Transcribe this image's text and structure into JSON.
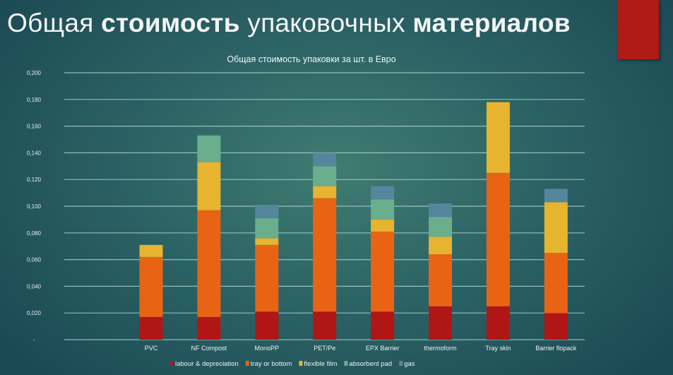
{
  "slide": {
    "title_parts": [
      {
        "text": "Общая ",
        "bold": false
      },
      {
        "text": "стоимость",
        "bold": true
      },
      {
        "text": " упаковочных ",
        "bold": false
      },
      {
        "text": "материалов",
        "bold": true
      }
    ],
    "accent_color": "#b01a17"
  },
  "chart_data": {
    "type": "bar",
    "stacked": true,
    "title": "Общая стоимость упаковки за шт. в Евро",
    "xlabel": "",
    "ylabel": "",
    "ylim": [
      0,
      0.2
    ],
    "yticks": [
      0,
      0.02,
      0.04,
      0.06,
      0.08,
      0.1,
      0.12,
      0.14,
      0.16,
      0.18,
      0.2
    ],
    "ytick_labels": [
      "-",
      "0,020",
      "0,040",
      "0,060",
      "0,080",
      "0,100",
      "0,120",
      "0,140",
      "0,160",
      "0,180",
      "0,200"
    ],
    "grid": true,
    "legend_position": "bottom",
    "categories": [
      "PVC",
      "NF Compost",
      "MonoPP",
      "PET/Pe",
      "EPX Barrier",
      "thermoform",
      "Tray skin",
      "Barrier flopack"
    ],
    "series": [
      {
        "name": "labour & depreciation",
        "color": "#b01615",
        "values": [
          0.017,
          0.017,
          0.021,
          0.021,
          0.021,
          0.025,
          0.025,
          0.02
        ]
      },
      {
        "name": "tray or bottom",
        "color": "#e86414",
        "values": [
          0.045,
          0.08,
          0.05,
          0.085,
          0.06,
          0.039,
          0.1,
          0.045
        ]
      },
      {
        "name": "flexible film",
        "color": "#e6b42e",
        "values": [
          0.009,
          0.036,
          0.005,
          0.009,
          0.009,
          0.013,
          0.053,
          0.038
        ]
      },
      {
        "name": "absorbent pad",
        "color": "#6aae8e",
        "values": [
          0,
          0.02,
          0.015,
          0.015,
          0.015,
          0.015,
          0,
          0
        ]
      },
      {
        "name": "gas",
        "color": "#55869e",
        "values": [
          0,
          0,
          0.01,
          0.01,
          0.01,
          0.01,
          0,
          0.01
        ]
      }
    ]
  }
}
